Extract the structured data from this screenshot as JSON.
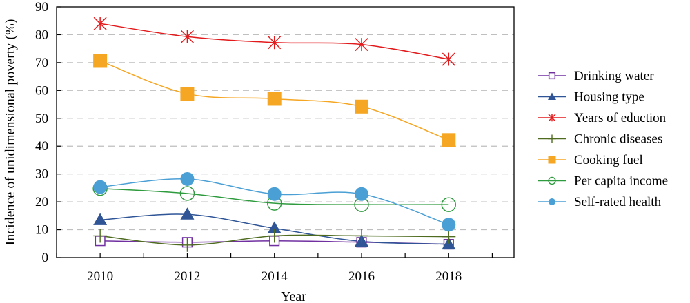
{
  "chart_data": {
    "type": "line",
    "xlabel": "Year",
    "ylabel": "Incidence of unidimensional poverty (%)",
    "x": [
      2010,
      2012,
      2014,
      2016,
      2018
    ],
    "ylim": [
      0,
      90
    ],
    "yticks": [
      0,
      10,
      20,
      30,
      40,
      50,
      60,
      70,
      80,
      90
    ],
    "grid": "horizontal-dashed",
    "legend_position": "right",
    "series": [
      {
        "name": "Drinking water",
        "values": [
          6.0,
          5.5,
          6.0,
          5.5,
          4.8
        ],
        "color": "#7030a0",
        "marker": "square-open"
      },
      {
        "name": "Housing type",
        "values": [
          13.5,
          15.5,
          10.5,
          5.8,
          4.8
        ],
        "color": "#2f5597",
        "marker": "triangle"
      },
      {
        "name": "Years of eduction",
        "values": [
          84.0,
          79.3,
          77.2,
          76.5,
          71.2
        ],
        "color": "#e31a1c",
        "marker": "star"
      },
      {
        "name": "Chronic diseases",
        "values": [
          7.8,
          4.5,
          7.8,
          7.8,
          7.5
        ],
        "color": "#4e6b1f",
        "marker": "plus"
      },
      {
        "name": "Cooking fuel",
        "values": [
          70.6,
          58.8,
          57.0,
          54.2,
          42.2
        ],
        "color": "#f5a623",
        "marker": "square"
      },
      {
        "name": "Per capita income",
        "values": [
          24.8,
          23.0,
          19.5,
          19.0,
          19.0
        ],
        "color": "#2e9b3e",
        "marker": "circle-open"
      },
      {
        "name": "Self-rated health",
        "values": [
          25.3,
          28.2,
          22.8,
          22.8,
          11.8
        ],
        "color": "#4a9fd5",
        "marker": "circle"
      }
    ]
  }
}
